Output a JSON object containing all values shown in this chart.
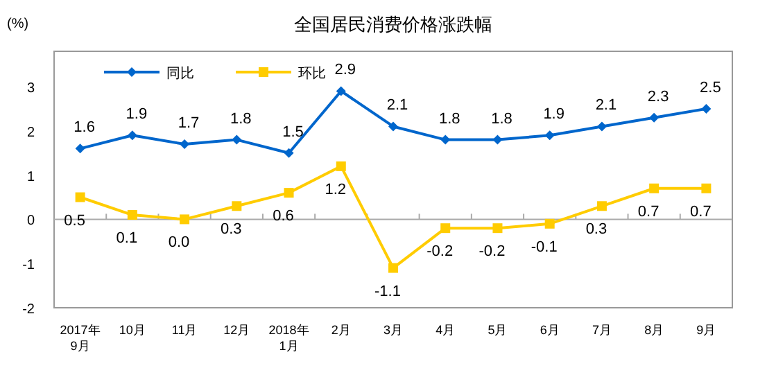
{
  "chart_data": {
    "type": "line",
    "title": "全国居民消费价格涨跌幅",
    "ylabel": "(%)",
    "categories": [
      "2017年\n9月",
      "10月",
      "11月",
      "12月",
      "2018年\n1月",
      "2月",
      "3月",
      "4月",
      "5月",
      "6月",
      "7月",
      "8月",
      "9月"
    ],
    "series": [
      {
        "name": "同比",
        "color": "#0066cc",
        "marker": "diamond",
        "values": [
          1.6,
          1.9,
          1.7,
          1.8,
          1.5,
          2.9,
          2.1,
          1.8,
          1.8,
          1.9,
          2.1,
          2.3,
          2.5
        ],
        "value_labels": [
          "1.6",
          "1.9",
          "1.7",
          "1.8",
          "1.5",
          "2.9",
          "2.1",
          "1.8",
          "1.8",
          "1.9",
          "2.1",
          "2.3",
          "2.5"
        ]
      },
      {
        "name": "环比",
        "color": "#ffcc00",
        "marker": "square",
        "values": [
          0.5,
          0.1,
          0.0,
          0.3,
          0.6,
          1.2,
          -1.1,
          -0.2,
          -0.2,
          -0.1,
          0.3,
          0.7,
          0.7
        ],
        "value_labels": [
          "0.5",
          "0.1",
          "0.0",
          "0.3",
          "0.6",
          "1.2",
          "-1.1",
          "-0.2",
          "-0.2",
          "-0.1",
          "0.3",
          "0.7",
          "0.7"
        ]
      }
    ],
    "ylim": [
      -2,
      3.8
    ],
    "yticks": [
      -2,
      -1,
      0,
      1,
      2,
      3
    ],
    "legend": "top"
  }
}
